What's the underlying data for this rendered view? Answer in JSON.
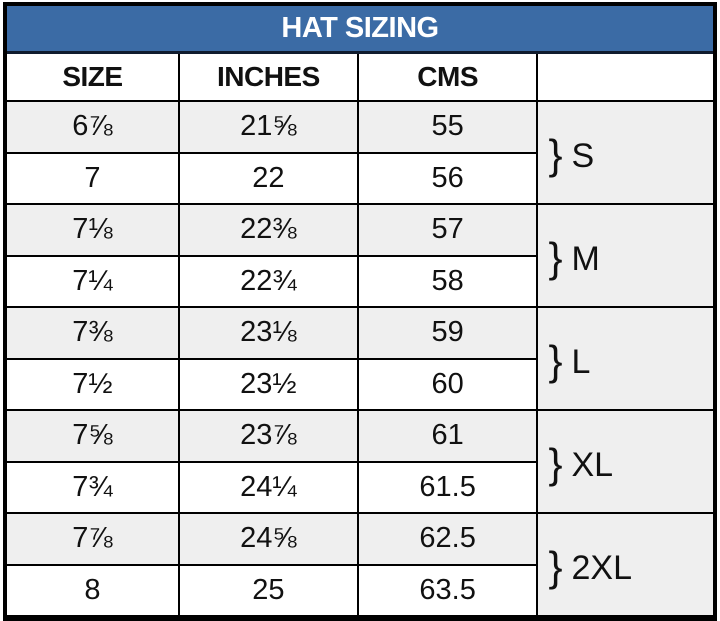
{
  "chart_data": {
    "type": "table",
    "title": "HAT SIZING",
    "columns": [
      "SIZE",
      "INCHES",
      "CMS",
      ""
    ],
    "rows": [
      [
        "6⅞",
        "21⅝",
        "55"
      ],
      [
        "7",
        "22",
        "56"
      ],
      [
        "7⅛",
        "22⅜",
        "57"
      ],
      [
        "7¼",
        "22¾",
        "58"
      ],
      [
        "7⅜",
        "23⅛",
        "59"
      ],
      [
        "7½",
        "23½",
        "60"
      ],
      [
        "7⅝",
        "23⅞",
        "61"
      ],
      [
        "7¾",
        "24¼",
        "61.5"
      ],
      [
        "7⅞",
        "24⅝",
        "62.5"
      ],
      [
        "8",
        "25",
        "63.5"
      ]
    ],
    "size_groups": [
      {
        "brace": "}",
        "label": "S",
        "spans_rows": [
          1,
          2
        ]
      },
      {
        "brace": "}",
        "label": "M",
        "spans_rows": [
          3,
          4
        ]
      },
      {
        "brace": "}",
        "label": "L",
        "spans_rows": [
          5,
          6
        ]
      },
      {
        "brace": "}",
        "label": "XL",
        "spans_rows": [
          7,
          8
        ]
      },
      {
        "brace": "}",
        "label": "2XL",
        "spans_rows": [
          9,
          10
        ]
      }
    ],
    "layout": {
      "shaded_rows": "odd rows starting with first",
      "legend_position": "none",
      "grid": "full black cell borders"
    }
  },
  "colors": {
    "header_bg": "#3B6BA5",
    "header_text": "#FFFFFF",
    "row_shaded_bg": "#EFEFEF",
    "row_plain_bg": "#FFFFFF",
    "border": "#000000",
    "title_border": "#101B2E",
    "text": "#111111"
  }
}
